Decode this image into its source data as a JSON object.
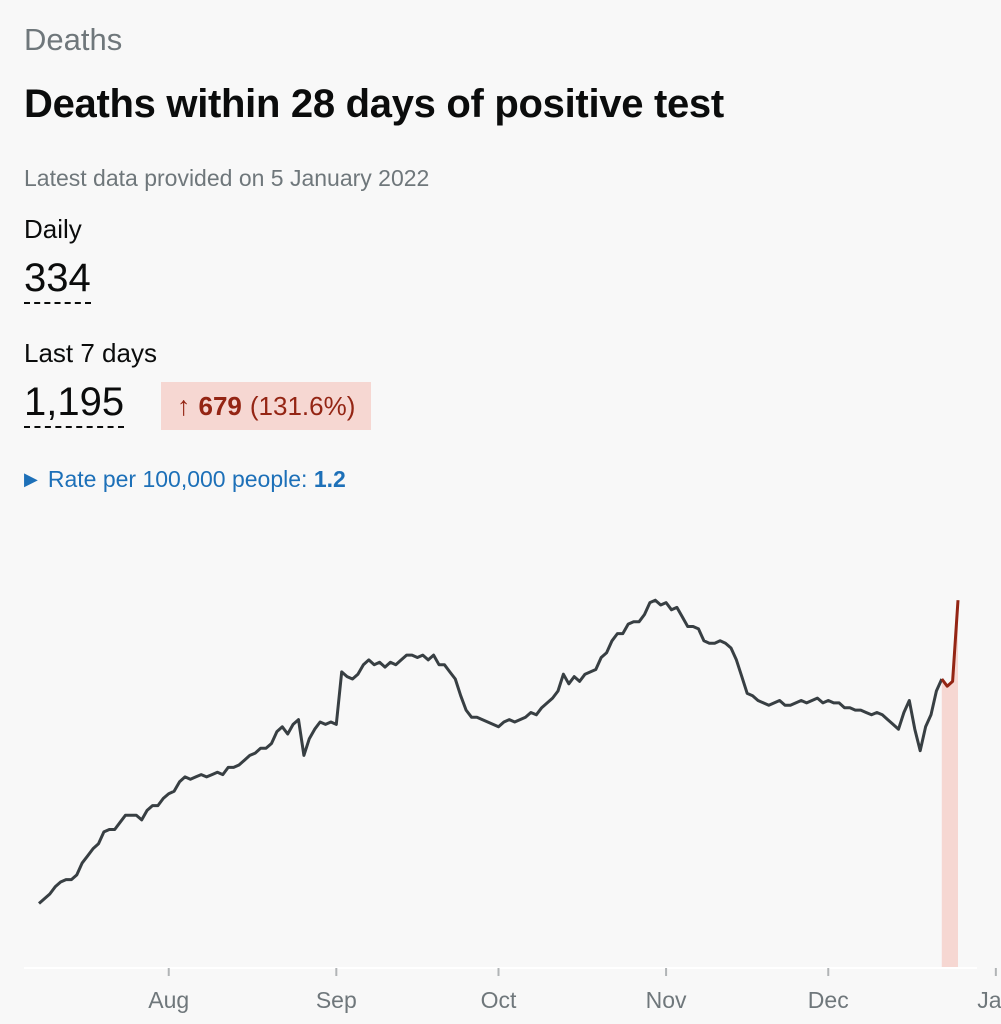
{
  "section": {
    "title": "Deaths"
  },
  "card": {
    "heading": "Deaths within 28 days of positive test",
    "updated": "Latest data provided on 5 January 2022"
  },
  "metrics": {
    "daily": {
      "label": "Daily",
      "value": "334"
    },
    "last7": {
      "label": "Last 7 days",
      "value": "1,195",
      "change_arrow": "↑",
      "change_value": "679",
      "change_percent": "(131.6%)"
    }
  },
  "rate": {
    "label": "Rate per 100,000 people:",
    "value": "1.2"
  },
  "colors": {
    "line": "#383f43",
    "recent_line": "#942514",
    "recent_fill": "#f6d7d2",
    "axis": "#b1b4b6",
    "link": "#1d70b8"
  },
  "chart_data": {
    "type": "line",
    "title": "",
    "xlabel": "",
    "ylabel": "",
    "x_ticks": [
      {
        "label": "Aug",
        "day": 24
      },
      {
        "label": "Sep",
        "day": 55
      },
      {
        "label": "Oct",
        "day": 85
      },
      {
        "label": "Nov",
        "day": 116
      },
      {
        "label": "Dec",
        "day": 146
      },
      {
        "label": "Jan",
        "day": 177
      }
    ],
    "ylim": [
      0,
      170
    ],
    "recent_from_day": 167,
    "values": [
      27,
      29,
      31,
      34,
      36,
      37,
      37,
      39,
      44,
      47,
      50,
      52,
      57,
      58,
      58,
      61,
      64,
      64,
      64,
      62,
      66,
      68,
      68,
      71,
      73,
      74,
      78,
      80,
      79,
      80,
      81,
      80,
      81,
      82,
      81,
      84,
      84,
      85,
      87,
      89,
      90,
      92,
      92,
      94,
      99,
      101,
      98,
      102,
      104,
      89,
      96,
      100,
      103,
      102,
      103,
      102,
      124,
      122,
      121,
      123,
      127,
      129,
      127,
      128,
      126,
      128,
      127,
      129,
      131,
      131,
      130,
      131,
      129,
      131,
      127,
      127,
      124,
      121,
      114,
      108,
      105,
      105,
      104,
      103,
      102,
      101,
      103,
      104,
      103,
      104,
      105,
      107,
      106,
      109,
      111,
      113,
      116,
      123,
      119,
      122,
      120,
      123,
      124,
      125,
      130,
      132,
      137,
      140,
      140,
      144,
      145,
      145,
      148,
      153,
      154,
      152,
      153,
      150,
      151,
      147,
      143,
      143,
      142,
      137,
      136,
      136,
      137,
      136,
      134,
      129,
      122,
      115,
      114,
      112,
      111,
      110,
      111,
      112,
      110,
      110,
      111,
      112,
      111,
      112,
      113,
      111,
      112,
      111,
      111,
      109,
      109,
      108,
      108,
      107,
      106,
      107,
      106,
      104,
      102,
      100,
      107,
      112,
      100,
      91,
      101,
      106,
      116,
      121,
      118,
      120,
      154
    ]
  }
}
